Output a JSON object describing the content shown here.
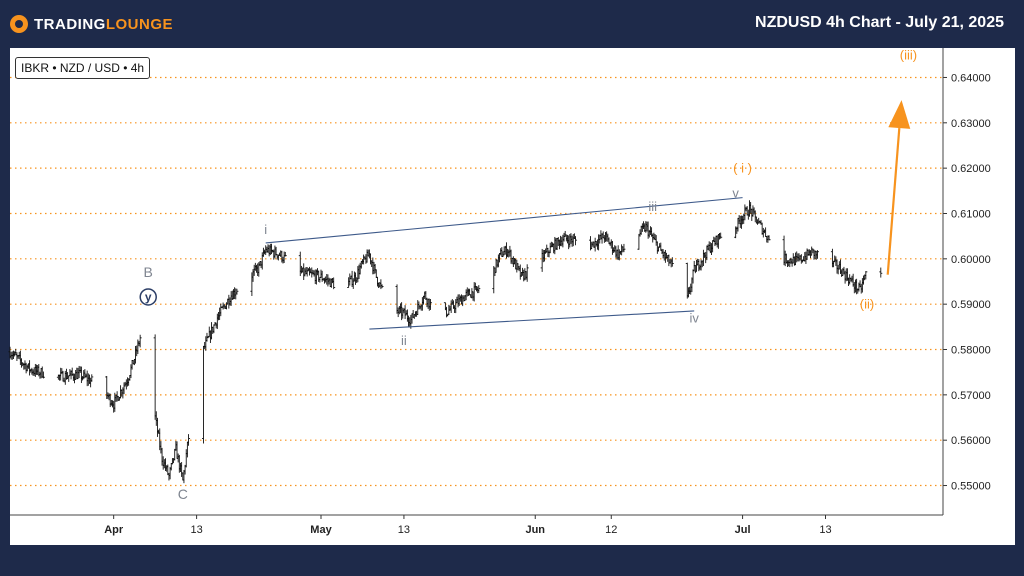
{
  "header": {
    "brand_pre": "TRADING",
    "brand_post": "LOUNGE",
    "title": "NZDUSD 4h Chart - July 21, 2025"
  },
  "badge": "IBKR • NZD / USD • 4h",
  "colors": {
    "background": "#1e2a4a",
    "accent_orange": "#f7931e",
    "wave_gray": "#7f8590",
    "channel_blue": "#3e5a8a",
    "candle": "#111111"
  },
  "chart_data": {
    "type": "ohlc",
    "symbol": "NZD / USD",
    "timeframe": "4h",
    "y_axis_side": "right",
    "ylim": [
      0.5435,
      0.6465
    ],
    "yticks": [
      "0.55000",
      "0.56000",
      "0.57000",
      "0.58000",
      "0.59000",
      "0.60000",
      "0.61000",
      "0.62000",
      "0.63000",
      "0.64000"
    ],
    "ytick_values": [
      0.55,
      0.56,
      0.57,
      0.58,
      0.59,
      0.6,
      0.61,
      0.62,
      0.63,
      0.64
    ],
    "xlim": [
      "2025-03-17",
      "2025-07-30"
    ],
    "xticks": [
      {
        "label": "Apr",
        "date": "2025-04-01",
        "bold": true
      },
      {
        "label": "13",
        "date": "2025-04-13",
        "bold": false
      },
      {
        "label": "May",
        "date": "2025-05-01",
        "bold": true
      },
      {
        "label": "13",
        "date": "2025-05-13",
        "bold": false
      },
      {
        "label": "Jun",
        "date": "2025-06-01",
        "bold": true
      },
      {
        "label": "12",
        "date": "2025-06-12",
        "bold": false
      },
      {
        "label": "Jul",
        "date": "2025-07-01",
        "bold": true
      },
      {
        "label": "13",
        "date": "2025-07-13",
        "bold": false
      }
    ],
    "price_path": [
      [
        "2025-03-17",
        0.5795
      ],
      [
        "2025-03-20",
        0.5755
      ],
      [
        "2025-03-24",
        0.574
      ],
      [
        "2025-03-27",
        0.5745
      ],
      [
        "2025-03-30",
        0.572
      ],
      [
        "2025-04-01",
        0.568
      ],
      [
        "2025-04-03",
        0.5735
      ],
      [
        "2025-04-04",
        0.578
      ],
      [
        "2025-04-05",
        0.5835
      ],
      [
        "2025-04-06",
        0.576
      ],
      [
        "2025-04-07",
        0.565
      ],
      [
        "2025-04-08",
        0.556
      ],
      [
        "2025-04-09",
        0.552
      ],
      [
        "2025-04-10",
        0.558
      ],
      [
        "2025-04-11",
        0.551
      ],
      [
        "2025-04-12",
        0.5625
      ],
      [
        "2025-04-13",
        0.57
      ],
      [
        "2025-04-14",
        0.58
      ],
      [
        "2025-04-16",
        0.587
      ],
      [
        "2025-04-18",
        0.592
      ],
      [
        "2025-04-20",
        0.595
      ],
      [
        "2025-04-22",
        0.598
      ],
      [
        "2025-04-23",
        0.602
      ],
      [
        "2025-04-25",
        0.601
      ],
      [
        "2025-04-28",
        0.597
      ],
      [
        "2025-05-01",
        0.596
      ],
      [
        "2025-05-04",
        0.5935
      ],
      [
        "2025-05-06",
        0.596
      ],
      [
        "2025-05-07",
        0.599
      ],
      [
        "2025-05-08",
        0.601
      ],
      [
        "2025-05-09",
        0.596
      ],
      [
        "2025-05-11",
        0.589
      ],
      [
        "2025-05-13",
        0.588
      ],
      [
        "2025-05-14",
        0.5865
      ],
      [
        "2025-05-16",
        0.592
      ],
      [
        "2025-05-17",
        0.5895
      ],
      [
        "2025-05-19",
        0.588
      ],
      [
        "2025-05-22",
        0.592
      ],
      [
        "2025-05-25",
        0.594
      ],
      [
        "2025-05-27",
        0.601
      ],
      [
        "2025-05-28",
        0.602
      ],
      [
        "2025-05-30",
        0.596
      ],
      [
        "2025-06-01",
        0.5985
      ],
      [
        "2025-06-03",
        0.602
      ],
      [
        "2025-06-05",
        0.6045
      ],
      [
        "2025-06-07",
        0.604
      ],
      [
        "2025-06-09",
        0.603
      ],
      [
        "2025-06-11",
        0.605
      ],
      [
        "2025-06-13",
        0.601
      ],
      [
        "2025-06-15",
        0.604
      ],
      [
        "2025-06-17",
        0.607
      ],
      [
        "2025-06-19",
        0.602
      ],
      [
        "2025-06-21",
        0.598
      ],
      [
        "2025-06-23",
        0.591
      ],
      [
        "2025-06-24",
        0.5975
      ],
      [
        "2025-06-26",
        0.602
      ],
      [
        "2025-06-28",
        0.6055
      ],
      [
        "2025-06-30",
        0.607
      ],
      [
        "2025-07-01",
        0.6095
      ],
      [
        "2025-07-02",
        0.611
      ],
      [
        "2025-07-03",
        0.6085
      ],
      [
        "2025-07-05",
        0.604
      ],
      [
        "2025-07-07",
        0.6
      ],
      [
        "2025-07-09",
        0.5995
      ],
      [
        "2025-07-11",
        0.6015
      ],
      [
        "2025-07-13",
        0.6
      ],
      [
        "2025-07-15",
        0.598
      ],
      [
        "2025-07-17",
        0.5945
      ],
      [
        "2025-07-18",
        0.593
      ],
      [
        "2025-07-19",
        0.5975
      ],
      [
        "2025-07-21",
        0.5965
      ]
    ],
    "lines": [
      {
        "name": "upper-channel-line",
        "color": "#3e5a8a",
        "points": [
          [
            "2025-04-23",
            0.6035
          ],
          [
            "2025-07-01",
            0.6135
          ]
        ]
      },
      {
        "name": "lower-channel-line",
        "color": "#3e5a8a",
        "points": [
          [
            "2025-05-08",
            0.5845
          ],
          [
            "2025-06-24",
            0.5885
          ]
        ]
      },
      {
        "name": "projection-arrow",
        "color": "#f7931e",
        "points": [
          [
            "2025-07-22",
            0.5965
          ],
          [
            "2025-07-24",
            0.635
          ]
        ]
      }
    ],
    "annotations": [
      {
        "text": "B",
        "x": "2025-04-06",
        "y": 0.596,
        "color": "#7f8590",
        "circled": false
      },
      {
        "text": "y",
        "x": "2025-04-06",
        "y": 0.5907,
        "color": "#2c3e66",
        "circled": true
      },
      {
        "text": "C",
        "x": "2025-04-11",
        "y": 0.547,
        "color": "#7f8590",
        "circled": false
      },
      {
        "text": "i",
        "x": "2025-04-23",
        "y": 0.6055,
        "color": "#7f8590",
        "circled": false
      },
      {
        "text": "ii",
        "x": "2025-05-13",
        "y": 0.581,
        "color": "#7f8590",
        "circled": false
      },
      {
        "text": "iii",
        "x": "2025-06-18",
        "y": 0.6105,
        "color": "#7f8590",
        "circled": false
      },
      {
        "text": "iv",
        "x": "2025-06-24",
        "y": 0.586,
        "color": "#7f8590",
        "circled": false
      },
      {
        "text": "v",
        "x": "2025-06-30",
        "y": 0.6135,
        "color": "#7f8590",
        "circled": false
      },
      {
        "text": "( i )",
        "x": "2025-07-01",
        "y": 0.619,
        "color": "#f7931e",
        "circled": false
      },
      {
        "text": "(ii)",
        "x": "2025-07-19",
        "y": 0.589,
        "color": "#f7931e",
        "circled": false
      },
      {
        "text": "(iii)",
        "x": "2025-07-25",
        "y": 0.644,
        "color": "#f7931e",
        "circled": false
      }
    ]
  }
}
